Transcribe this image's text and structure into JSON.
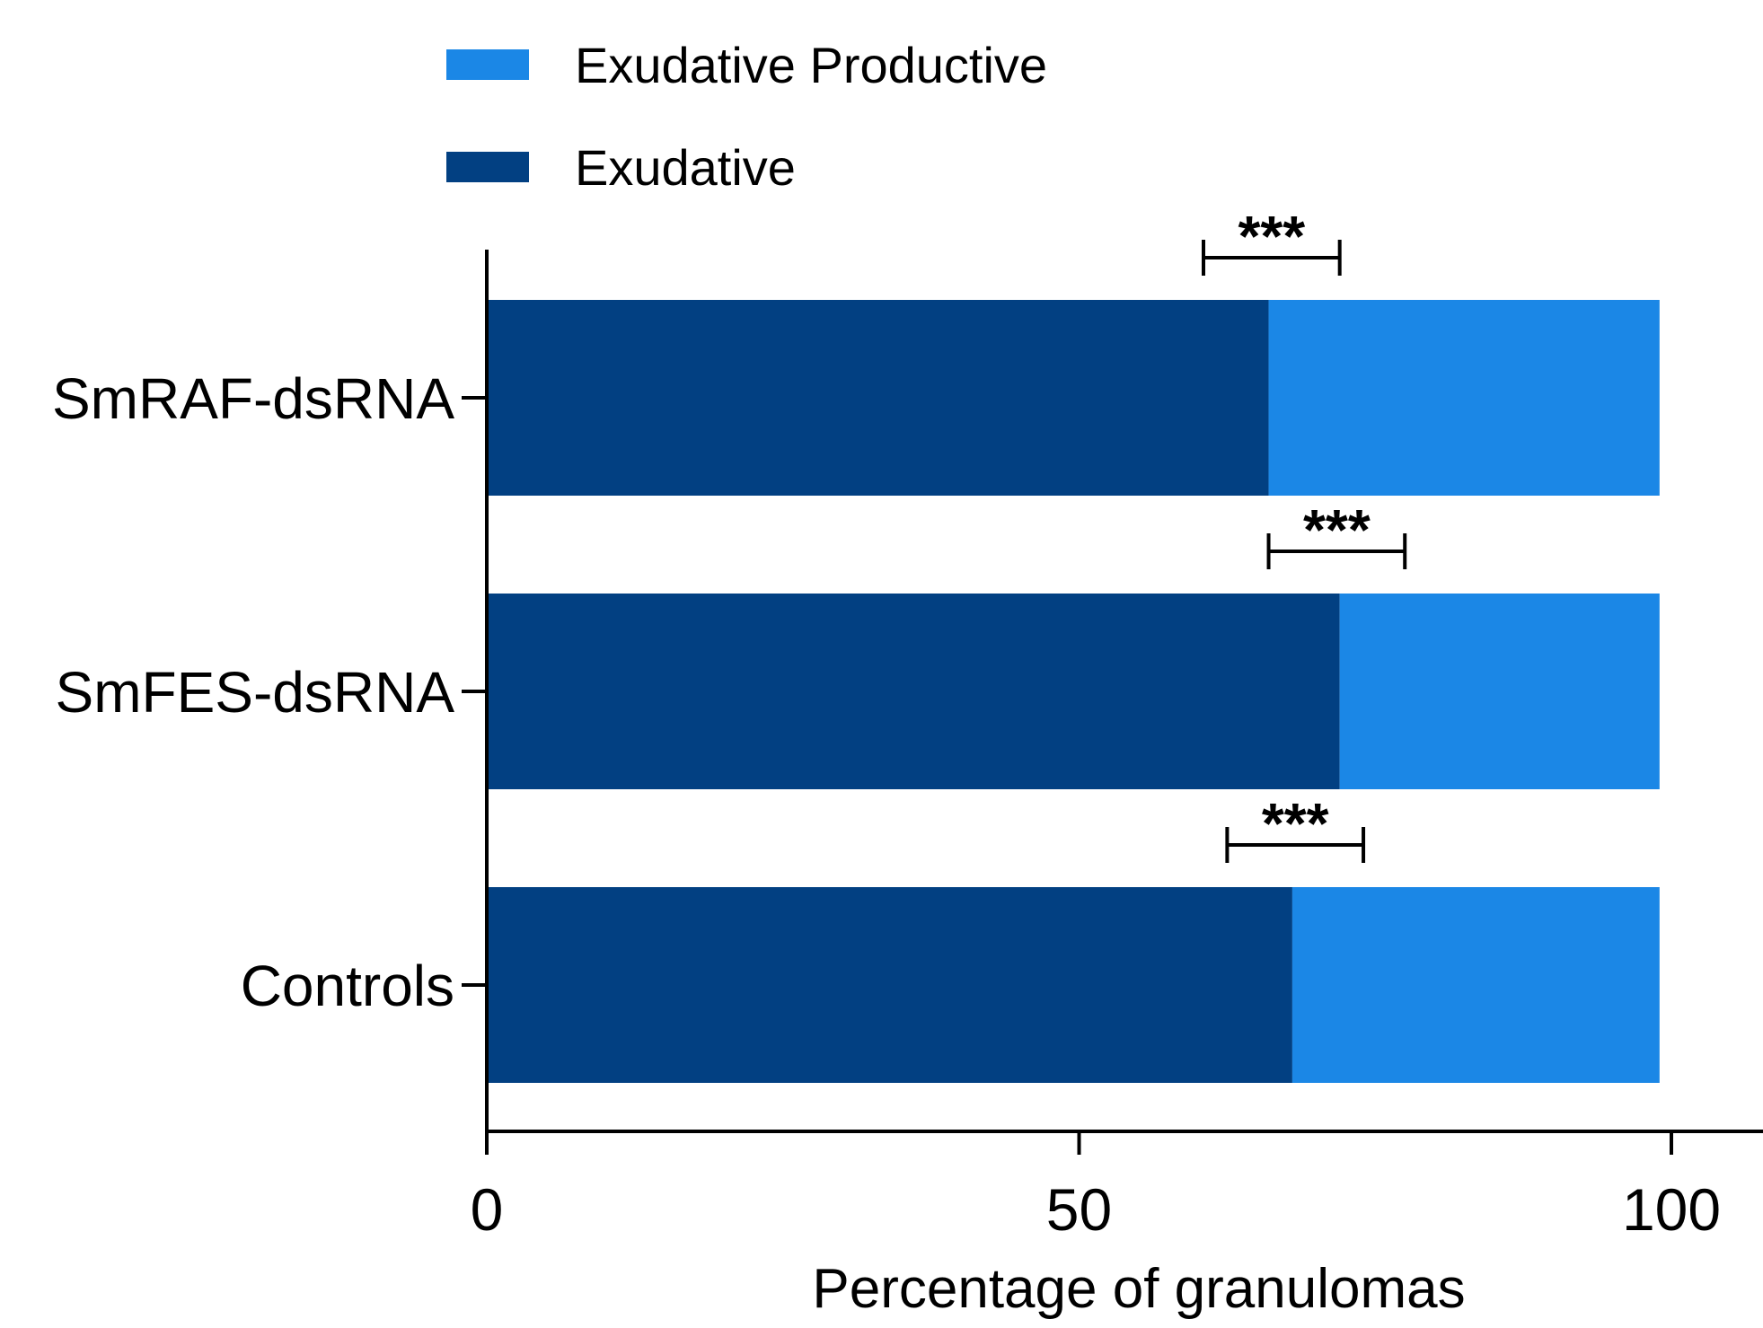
{
  "chart_data": {
    "type": "bar",
    "orientation": "horizontal",
    "stacked": true,
    "categories": [
      "SmRAF-dsRNA",
      "SmFES-dsRNA",
      "Controls"
    ],
    "series": [
      {
        "name": "Exudative",
        "color": "#024082",
        "values": [
          66,
          72,
          68
        ]
      },
      {
        "name": "Exudative Productive",
        "color": "#1b87e6",
        "values": [
          33,
          27,
          31
        ]
      }
    ],
    "xlabel": "Percentage of granulomas",
    "ylabel": "",
    "title": "",
    "xlim": [
      0,
      100
    ],
    "xticks": [
      "0",
      "50",
      "100"
    ],
    "legend": {
      "position": "top-left",
      "order": [
        "Exudative Productive",
        "Exudative"
      ]
    },
    "grid": false,
    "significance": [
      {
        "category": "SmRAF-dsRNA",
        "label": "***",
        "from": 60.5,
        "to": 72
      },
      {
        "category": "SmFES-dsRNA",
        "label": "***",
        "from": 66,
        "to": 77.5
      },
      {
        "category": "Controls",
        "label": "***",
        "from": 62.5,
        "to": 74
      }
    ]
  }
}
